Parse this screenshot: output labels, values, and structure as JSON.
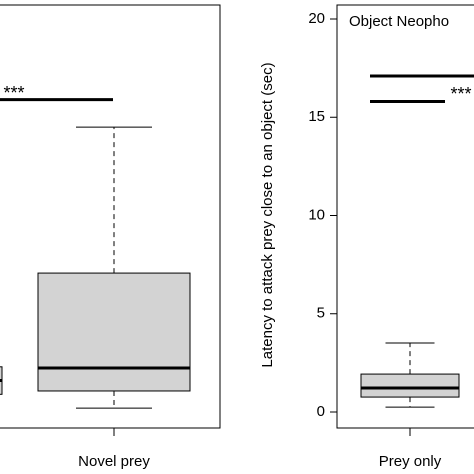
{
  "chart_data": [
    {
      "type": "box",
      "categories": [
        null,
        "Novel prey"
      ],
      "ylim": [
        0,
        20
      ],
      "boxes": [
        {
          "q1": 0.9,
          "median": 1.6,
          "q3": 2.3
        },
        {
          "whislo": 0.2,
          "q1": 1.07,
          "median": 2.24,
          "q3": 7.07,
          "whishi": 14.5
        }
      ],
      "sig_lines": [
        15.9
      ],
      "annotation": "***",
      "color": "#d3d3d3"
    },
    {
      "type": "box",
      "title": "Object Neopho",
      "ylabel": "Latency to attack prey close to an object (sec)",
      "categories": [
        "Prey only"
      ],
      "ylim": [
        0,
        20
      ],
      "yticks": [
        0,
        5,
        10,
        15,
        20
      ],
      "boxes": [
        {
          "whislo": 0.25,
          "q1": 0.76,
          "median": 1.22,
          "q3": 1.93,
          "whishi": 3.51
        }
      ],
      "sig_lines": [
        17.1,
        15.8
      ],
      "annotation": "***",
      "color": "#d3d3d3"
    }
  ]
}
